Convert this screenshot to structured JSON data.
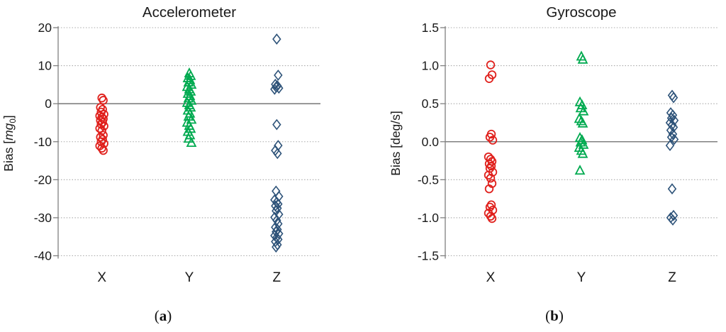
{
  "figure": {
    "background": "#ffffff",
    "text_color": "#1a1a1a",
    "gridline_color": "#a8a8a8",
    "axis_color": "#808080"
  },
  "chart_data": [
    {
      "type": "scatter",
      "title": "Accelerometer",
      "ylabel": "Bias [mg0]",
      "ylabel_segments": [
        {
          "t": "Bias [",
          "style": "normal"
        },
        {
          "t": "mg",
          "style": "italic"
        },
        {
          "t": "0",
          "style": "sub"
        },
        {
          "t": "]",
          "style": "normal"
        }
      ],
      "categories": [
        "X",
        "Y",
        "Z"
      ],
      "ylim": [
        -40,
        20
      ],
      "grid": true,
      "legend": "none",
      "yticks": [
        {
          "v": 20,
          "label": "20"
        },
        {
          "v": 10,
          "label": "10"
        },
        {
          "v": 0,
          "label": "0"
        },
        {
          "v": -10,
          "label": "-10"
        },
        {
          "v": -20,
          "label": "-20"
        },
        {
          "v": -30,
          "label": "-30"
        },
        {
          "v": -40,
          "label": "-40"
        }
      ],
      "series": [
        {
          "name": "X",
          "marker": "circle",
          "color": "#e0201c",
          "values": [
            1.5,
            0.9,
            -1.0,
            -1.5,
            -2.2,
            -2.8,
            -3.2,
            -3.6,
            -4.0,
            -4.4,
            -4.9,
            -5.4,
            -5.9,
            -6.5,
            -7.1,
            -8.3,
            -8.8,
            -9.4,
            -10.0,
            -10.5,
            -11.1,
            -11.7,
            -12.3
          ]
        },
        {
          "name": "Y",
          "marker": "triangle",
          "color": "#00aa50",
          "values": [
            8.0,
            7.3,
            6.7,
            6.2,
            5.6,
            5.0,
            4.4,
            3.8,
            3.2,
            2.6,
            2.0,
            1.4,
            0.8,
            0.2,
            -0.4,
            -1.0,
            -1.8,
            -2.6,
            -3.4,
            -4.2,
            -5.0,
            -5.8,
            -6.6,
            -7.4,
            -8.3,
            -9.2,
            -10.3
          ]
        },
        {
          "name": "Z",
          "marker": "diamond",
          "color": "#2e5379",
          "values": [
            17.0,
            7.5,
            5.1,
            4.7,
            4.4,
            4.1,
            3.8,
            -5.5,
            -11.0,
            -12.3,
            -13.1,
            -23.0,
            -24.4,
            -25.3,
            -25.9,
            -26.4,
            -26.9,
            -27.5,
            -28.2,
            -29.1,
            -29.9,
            -30.7,
            -31.6,
            -32.5,
            -33.1,
            -33.7,
            -34.2,
            -34.7,
            -35.2,
            -35.7,
            -36.3,
            -37.1,
            -37.7
          ]
        }
      ],
      "caption": {
        "open": "(",
        "letter": "a",
        "close": ")"
      }
    },
    {
      "type": "scatter",
      "title": "Gyroscope",
      "ylabel": "Bias [deg/s]",
      "ylabel_segments": [
        {
          "t": "Bias [deg/s]",
          "style": "normal"
        }
      ],
      "categories": [
        "X",
        "Y",
        "Z"
      ],
      "ylim": [
        -1.5,
        1.5
      ],
      "grid": true,
      "legend": "none",
      "yticks": [
        {
          "v": 1.5,
          "label": "1.5"
        },
        {
          "v": 1.0,
          "label": "1.0"
        },
        {
          "v": 0.5,
          "label": "0.5"
        },
        {
          "v": 0.0,
          "label": "0.0"
        },
        {
          "v": -0.5,
          "label": "-0.5"
        },
        {
          "v": -1.0,
          "label": "-1.0"
        },
        {
          "v": -1.5,
          "label": "-1.5"
        }
      ],
      "series": [
        {
          "name": "X",
          "marker": "circle",
          "color": "#e0201c",
          "values": [
            1.01,
            0.88,
            0.83,
            0.1,
            0.06,
            0.02,
            -0.2,
            -0.23,
            -0.26,
            -0.29,
            -0.32,
            -0.35,
            -0.4,
            -0.44,
            -0.48,
            -0.55,
            -0.62,
            -0.83,
            -0.86,
            -0.9,
            -0.94,
            -0.98,
            -1.01
          ]
        },
        {
          "name": "Y",
          "marker": "triangle",
          "color": "#00aa50",
          "values": [
            1.12,
            1.08,
            0.52,
            0.48,
            0.44,
            0.4,
            0.3,
            0.27,
            0.24,
            0.05,
            0.02,
            -0.01,
            -0.04,
            -0.08,
            -0.12,
            -0.16,
            -0.38
          ]
        },
        {
          "name": "Z",
          "marker": "diamond",
          "color": "#2e5379",
          "values": [
            0.61,
            0.58,
            0.38,
            0.35,
            0.31,
            0.28,
            0.25,
            0.22,
            0.19,
            0.15,
            0.1,
            0.06,
            0.03,
            -0.05,
            -0.62,
            -0.97,
            -1.0,
            -1.03
          ]
        }
      ],
      "caption": {
        "open": "(",
        "letter": "b",
        "close": ")"
      }
    }
  ]
}
